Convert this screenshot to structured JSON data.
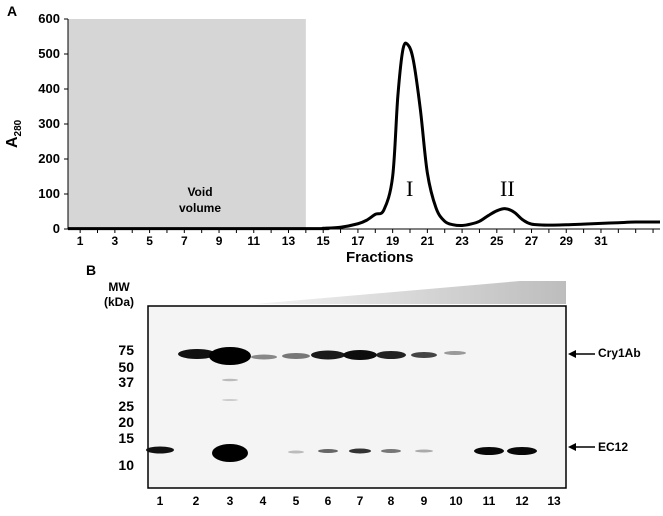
{
  "panelA": {
    "label": "A",
    "ylabel_main": "A",
    "ylabel_sub": "280",
    "xlabel": "Fractions",
    "void_label_1": "Void",
    "void_label_2": "volume",
    "peak1_label": "I",
    "peak2_label": "II",
    "yticks": [
      "0",
      "100",
      "200",
      "300",
      "400",
      "500",
      "600"
    ],
    "xticks": [
      "1",
      "3",
      "5",
      "7",
      "9",
      "11",
      "13",
      "15",
      "17",
      "19",
      "21",
      "23",
      "25",
      "27",
      "29",
      "31"
    ]
  },
  "panelB": {
    "label": "B",
    "mw_title_1": "MW",
    "mw_title_2": "(kDa)",
    "markers": [
      "75",
      "50",
      "37",
      "25",
      "20",
      "15",
      "10"
    ],
    "lanes": [
      "1",
      "2",
      "3",
      "4",
      "5",
      "6",
      "7",
      "8",
      "9",
      "10",
      "11",
      "12",
      "13"
    ],
    "band_label_top": "Cry1Ab",
    "band_label_bottom": "EC12"
  },
  "chart_data": {
    "type": "line",
    "xlabel": "Fractions",
    "ylabel": "A280",
    "xlim": [
      0.3,
      34.4
    ],
    "ylim": [
      0,
      600
    ],
    "grid": false,
    "shaded_region": {
      "x_start": 0.3,
      "x_end": 14,
      "label": "Void volume"
    },
    "x": [
      0.3,
      14,
      15,
      16,
      17,
      17.5,
      18,
      18.5,
      19,
      19.3,
      19.6,
      19.9,
      20.2,
      20.6,
      21,
      21.5,
      22,
      22.5,
      23,
      23.5,
      24,
      24.5,
      25,
      25.5,
      26,
      26.5,
      27,
      28,
      29,
      30,
      31,
      32,
      33,
      34.4
    ],
    "series": [
      {
        "values": [
          1,
          1,
          2,
          5,
          15,
          25,
          42,
          55,
          150,
          380,
          515,
          525,
          480,
          340,
          160,
          60,
          22,
          12,
          10,
          14,
          22,
          38,
          52,
          58,
          48,
          26,
          14,
          11,
          12,
          14,
          16,
          18,
          20,
          20
        ]
      }
    ],
    "annotations": [
      {
        "text": "I",
        "x": 20,
        "y": 110
      },
      {
        "text": "II",
        "x": 25.5,
        "y": 110
      }
    ]
  }
}
